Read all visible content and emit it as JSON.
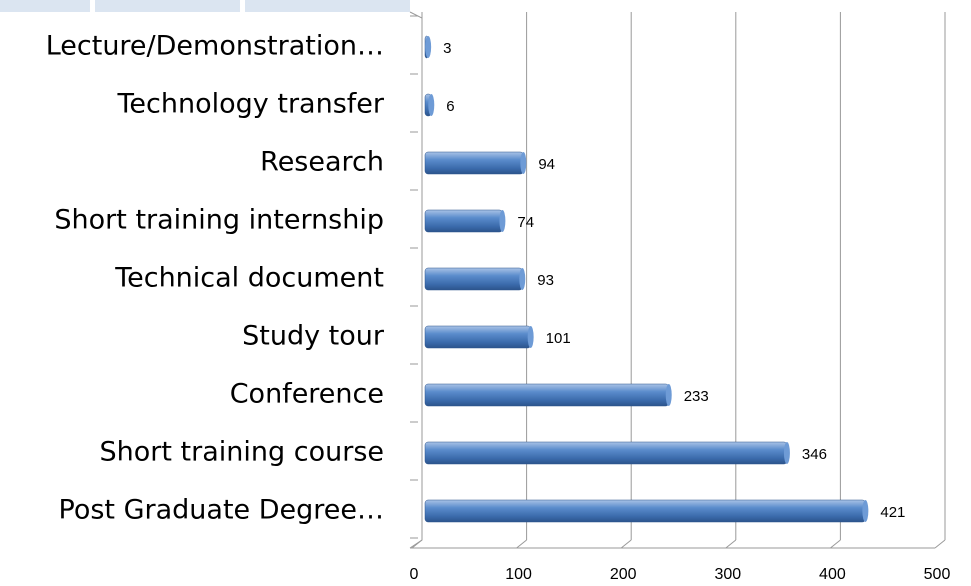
{
  "chart_data": {
    "type": "bar",
    "orientation": "horizontal",
    "categories": [
      "Lecture/Demonstration…",
      "Technology transfer",
      "Research",
      "Short training internship",
      "Technical document",
      "Study tour",
      "Conference",
      "Short training course",
      "Post Graduate Degree…"
    ],
    "values": [
      3,
      6,
      94,
      74,
      93,
      101,
      233,
      346,
      421
    ],
    "color": "#4f81bd",
    "xlim": [
      0,
      500
    ],
    "xticks": [
      0,
      100,
      200,
      300,
      400,
      500
    ],
    "grid": true
  }
}
